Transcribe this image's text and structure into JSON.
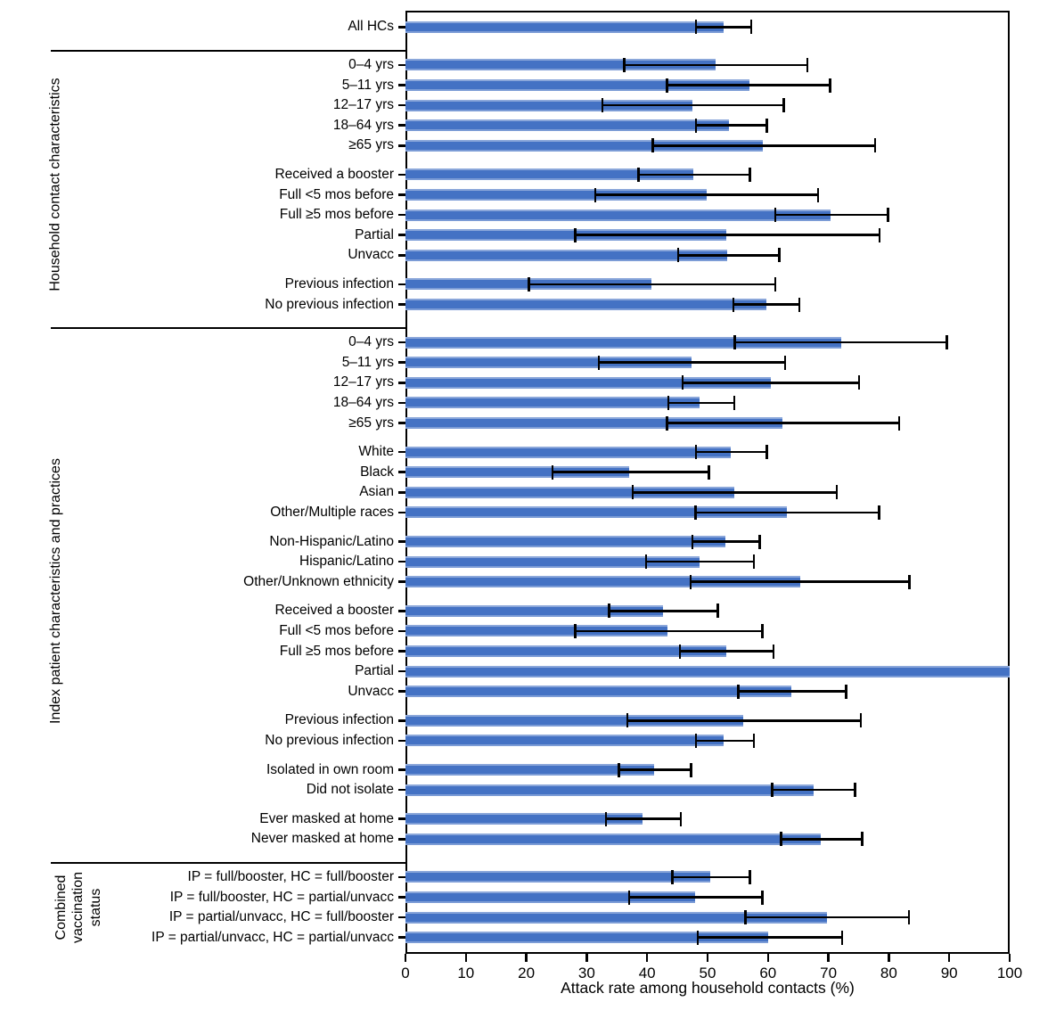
{
  "chart_data": {
    "type": "bar",
    "orientation": "horizontal",
    "title": "",
    "xlabel": "Attack rate among household contacts (%)",
    "xlim": [
      0,
      100
    ],
    "xticks": [
      0,
      10,
      20,
      30,
      40,
      50,
      60,
      70,
      80,
      90,
      100
    ],
    "grid": false,
    "legend": "none",
    "error_bars": "95% CI, horizontal with end caps",
    "colors": {
      "bar": "#4472C4",
      "bar_edge_highlight": "#8CA9DC",
      "error_bar": "#000000",
      "text": "#000000"
    },
    "sections": [
      {
        "label": "",
        "blocks": [
          [
            {
              "label": "All HCs",
              "value": 52.7,
              "ci": [
                48.1,
                57.2
              ]
            }
          ]
        ]
      },
      {
        "label": "Household contact characteristics",
        "blocks": [
          [
            {
              "label": "0–4 yrs",
              "value": 51.4,
              "ci": [
                36.2,
                66.5
              ]
            },
            {
              "label": "5–11 yrs",
              "value": 57.0,
              "ci": [
                43.3,
                70.3
              ]
            },
            {
              "label": "12–17 yrs",
              "value": 47.5,
              "ci": [
                32.6,
                62.6
              ]
            },
            {
              "label": "18–64 yrs",
              "value": 53.6,
              "ci": [
                48.1,
                59.8
              ]
            },
            {
              "label": "≥65 yrs",
              "value": 59.2,
              "ci": [
                40.9,
                77.7
              ]
            }
          ],
          [
            {
              "label": "Received a booster",
              "value": 47.7,
              "ci": [
                38.6,
                57.0
              ]
            },
            {
              "label": "Full <5 mos before",
              "value": 49.9,
              "ci": [
                31.4,
                68.3
              ]
            },
            {
              "label": "Full ≥5 mos before",
              "value": 70.4,
              "ci": [
                61.2,
                79.9
              ]
            },
            {
              "label": "Partial",
              "value": 53.1,
              "ci": [
                28.1,
                78.5
              ]
            },
            {
              "label": "Unvacc",
              "value": 53.2,
              "ci": [
                45.1,
                61.9
              ]
            }
          ],
          [
            {
              "label": "Previous infection",
              "value": 40.7,
              "ci": [
                20.4,
                61.2
              ]
            },
            {
              "label": "No previous infection",
              "value": 59.7,
              "ci": [
                54.3,
                65.2
              ]
            }
          ]
        ]
      },
      {
        "label": "Index patient characteristics and practices",
        "blocks": [
          [
            {
              "label": "0–4 yrs",
              "value": 72.1,
              "ci": [
                54.5,
                89.6
              ]
            },
            {
              "label": "5–11 yrs",
              "value": 47.4,
              "ci": [
                32.0,
                62.8
              ]
            },
            {
              "label": "12–17 yrs",
              "value": 60.4,
              "ci": [
                45.9,
                75.1
              ]
            },
            {
              "label": "18–64 yrs",
              "value": 48.7,
              "ci": [
                43.5,
                54.4
              ]
            },
            {
              "label": "≥65 yrs",
              "value": 62.4,
              "ci": [
                43.3,
                81.7
              ]
            }
          ],
          [
            {
              "label": "White",
              "value": 53.8,
              "ci": [
                48.1,
                59.8
              ]
            },
            {
              "label": "Black",
              "value": 37.0,
              "ci": [
                24.3,
                50.2
              ]
            },
            {
              "label": "Asian",
              "value": 54.4,
              "ci": [
                37.6,
                71.4
              ]
            },
            {
              "label": "Other/Multiple races",
              "value": 63.1,
              "ci": [
                48.0,
                78.4
              ]
            }
          ],
          [
            {
              "label": "Non-Hispanic/Latino",
              "value": 52.9,
              "ci": [
                47.5,
                58.6
              ]
            },
            {
              "label": "Hispanic/Latino",
              "value": 48.6,
              "ci": [
                39.8,
                57.7
              ]
            },
            {
              "label": "Other/Unknown ethnicity",
              "value": 65.3,
              "ci": [
                47.2,
                83.4
              ]
            }
          ],
          [
            {
              "label": "Received a booster",
              "value": 42.6,
              "ci": [
                33.7,
                51.7
              ]
            },
            {
              "label": "Full <5 mos before",
              "value": 43.3,
              "ci": [
                28.1,
                59.1
              ]
            },
            {
              "label": "Full ≥5 mos before",
              "value": 53.1,
              "ci": [
                45.4,
                60.9
              ]
            },
            {
              "label": "Partial",
              "value": 100.0,
              "ci": null
            },
            {
              "label": "Unvacc",
              "value": 63.9,
              "ci": [
                55.1,
                72.9
              ]
            }
          ],
          [
            {
              "label": "Previous infection",
              "value": 55.9,
              "ci": [
                36.7,
                75.4
              ]
            },
            {
              "label": "No previous infection",
              "value": 52.7,
              "ci": [
                48.1,
                57.7
              ]
            }
          ],
          [
            {
              "label": "Isolated in own room",
              "value": 41.1,
              "ci": [
                35.3,
                47.3
              ]
            },
            {
              "label": "Did not isolate",
              "value": 67.5,
              "ci": [
                60.7,
                74.4
              ]
            }
          ],
          [
            {
              "label": "Ever masked at home",
              "value": 39.3,
              "ci": [
                33.2,
                45.6
              ]
            },
            {
              "label": "Never masked at home",
              "value": 68.8,
              "ci": [
                62.2,
                75.6
              ]
            }
          ]
        ]
      },
      {
        "label": "Combined vaccination status",
        "blocks": [
          [
            {
              "label": "IP = full/booster, HC = full/booster",
              "value": 50.5,
              "ci": [
                44.2,
                57.0
              ]
            },
            {
              "label": "IP = full/booster, HC = partial/unvacc",
              "value": 48.0,
              "ci": [
                37.0,
                59.1
              ]
            },
            {
              "label": "IP = partial/unvacc, HC = full/booster",
              "value": 69.7,
              "ci": [
                56.3,
                83.3
              ]
            },
            {
              "label": "IP = partial/unvacc, HC = partial/unvacc",
              "value": 60.1,
              "ci": [
                48.4,
                72.3
              ]
            }
          ]
        ]
      }
    ]
  }
}
